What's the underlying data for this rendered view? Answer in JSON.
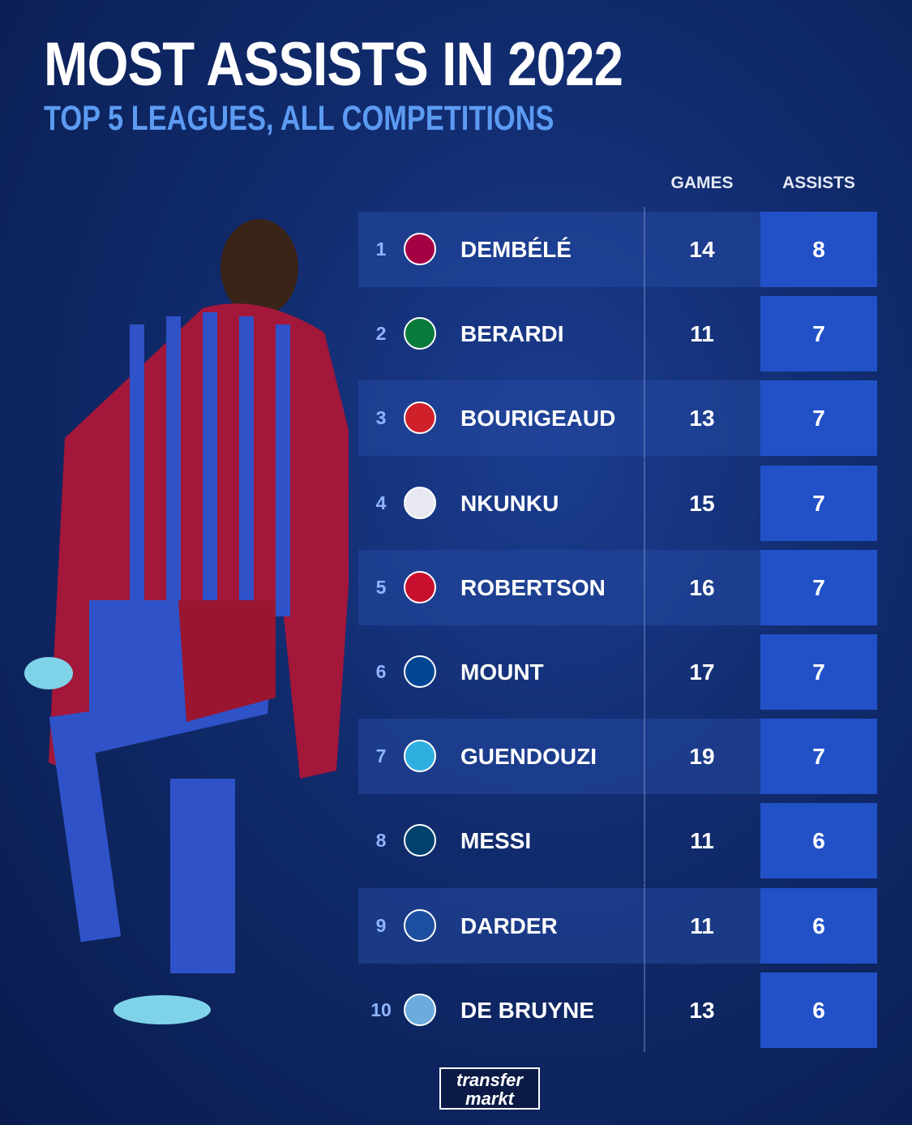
{
  "header": {
    "title": "MOST ASSISTS IN 2022",
    "subtitle": "TOP 5 LEAGUES, ALL COMPETITIONS"
  },
  "table": {
    "columns": [
      "GAMES",
      "ASSISTS"
    ],
    "rows": [
      [
        "1",
        "DEMBÉLÉ",
        "14",
        "8"
      ],
      [
        "2",
        "BERARDI",
        "11",
        "7"
      ],
      [
        "3",
        "BOURIGEAUD",
        "13",
        "7"
      ],
      [
        "4",
        "NKUNKU",
        "15",
        "7"
      ],
      [
        "5",
        "ROBERTSON",
        "16",
        "7"
      ],
      [
        "6",
        "MOUNT",
        "17",
        "7"
      ],
      [
        "7",
        "GUENDOUZI",
        "19",
        "7"
      ],
      [
        "8",
        "MESSI",
        "11",
        "6"
      ],
      [
        "9",
        "DARDER",
        "11",
        "6"
      ],
      [
        "10",
        "DE BRUYNE",
        "13",
        "6"
      ]
    ]
  },
  "footer": {
    "logo": [
      "transfer",
      "markt"
    ]
  }
}
